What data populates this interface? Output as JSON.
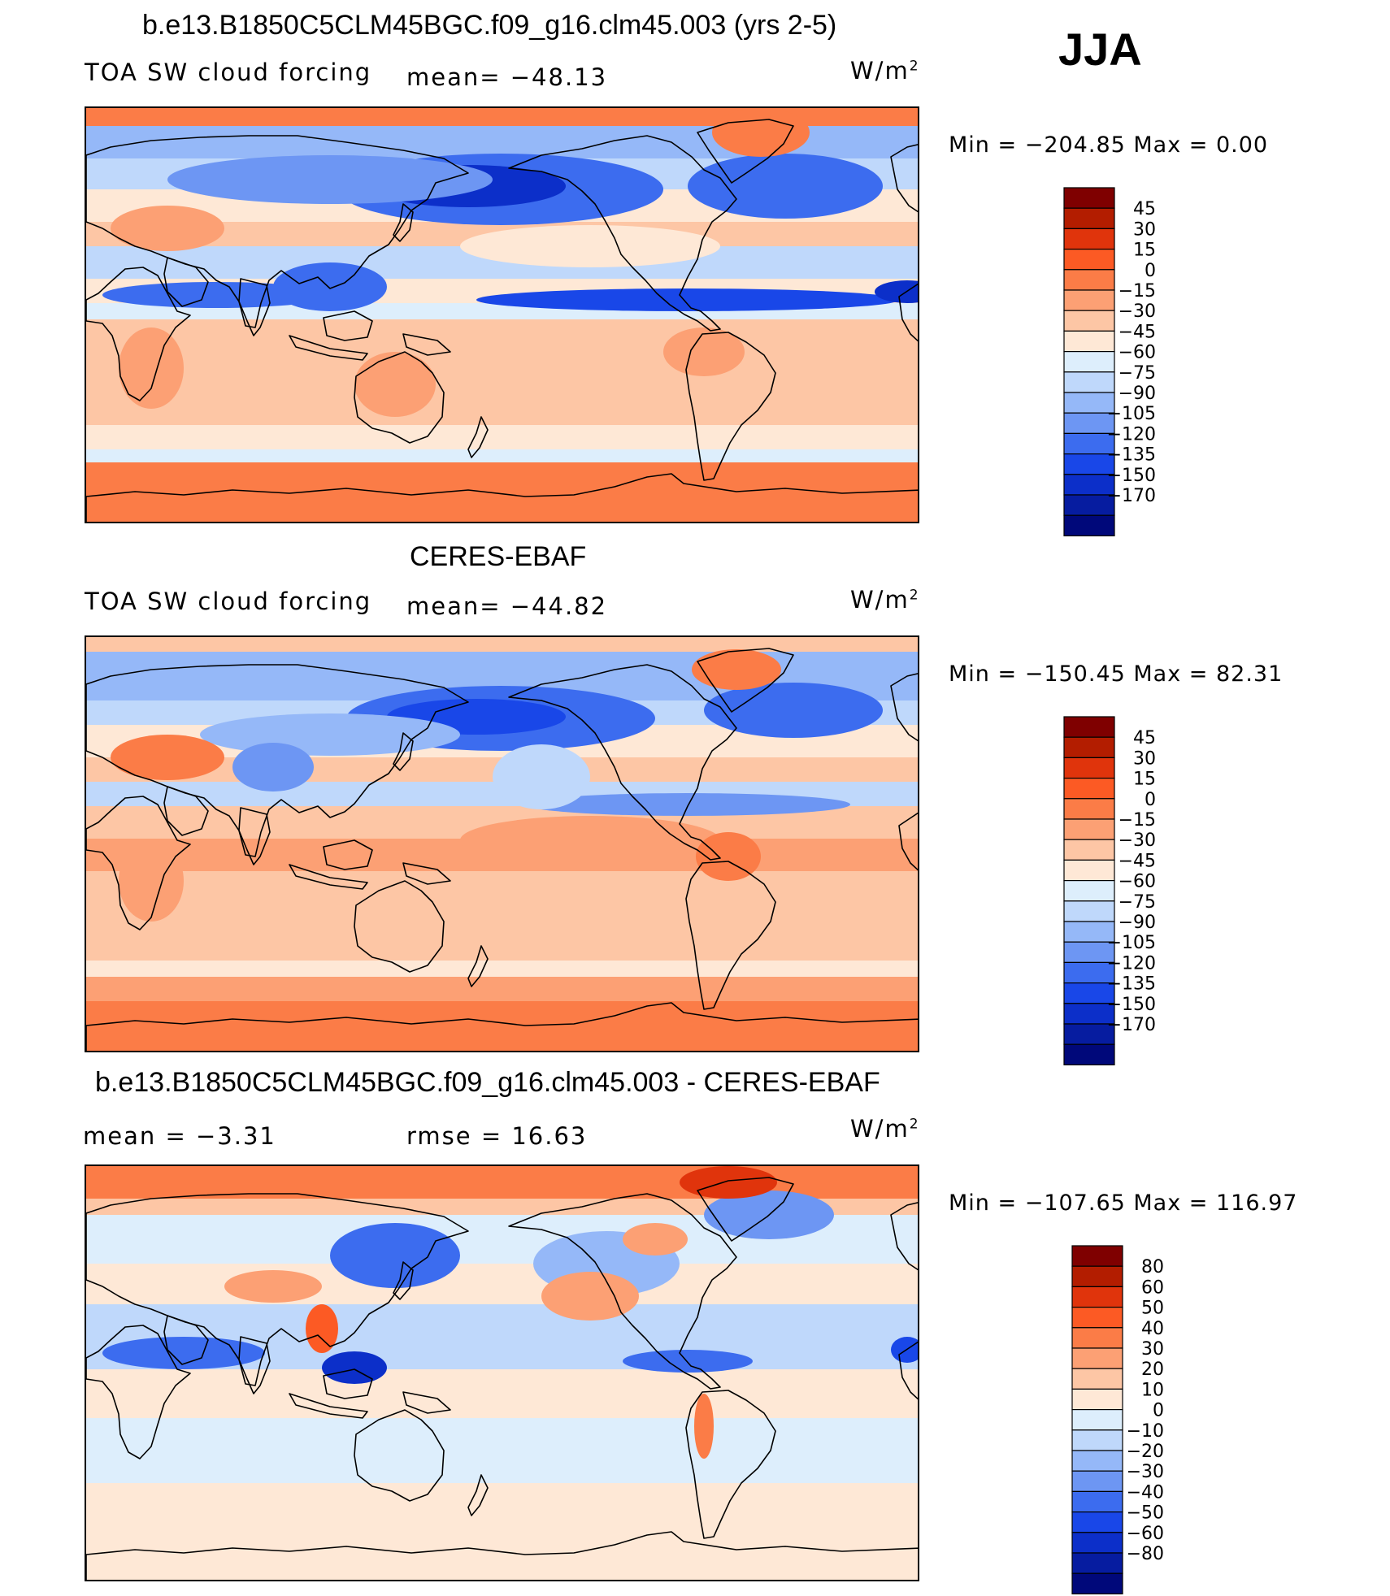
{
  "figure": {
    "season": "JJA"
  },
  "colors": {
    "red_scale": [
      "#7f0000",
      "#b31d00",
      "#e0340c",
      "#fc5a24",
      "#fb7c47",
      "#fca074",
      "#fdc6a5",
      "#fee8d6"
    ],
    "blue_scale": [
      "#ddeefc",
      "#bfd8fb",
      "#95b8f8",
      "#6d96f3",
      "#3c6cef",
      "#1947e8",
      "#0c2fc9",
      "#061ca0",
      "#00087a"
    ]
  },
  "panels": [
    {
      "title": "b.e13.B1850C5CLM45BGC.f09_g16.clm45.003 (yrs 2-5)",
      "left_label": "TOA SW cloud forcing",
      "stat_label": "mean= −48.13",
      "units": "W/m",
      "units_exp": "2",
      "minmax_text": "Min  =  −204.85  Max  =      0.00"
    },
    {
      "title": "CERES-EBAF",
      "left_label": "TOA SW cloud forcing",
      "stat_label": "mean= −44.82",
      "units": "W/m",
      "units_exp": "2",
      "minmax_text": "Min  =  −150.45  Max  =    82.31"
    },
    {
      "title": "b.e13.B1850C5CLM45BGC.f09_g16.clm45.003 - CERES-EBAF",
      "left_label": "mean  =    −3.31",
      "stat_label": "rmse  =    16.63",
      "units": "W/m",
      "units_exp": "2",
      "minmax_text": "Min  =  −107.65  Max  =  116.97"
    }
  ],
  "chart_data": [
    {
      "type": "heatmap",
      "title": "b.e13.B1850C5CLM45BGC.f09_g16.clm45.003 (yrs 2-5)",
      "variable": "TOA SW cloud forcing",
      "units": "W/m2",
      "mean": -48.13,
      "min": -204.85,
      "max": 0.0,
      "contour_levels": [
        -170,
        -150,
        -135,
        -120,
        -105,
        -90,
        -75,
        -60,
        -45,
        -30,
        -15,
        0,
        15,
        30,
        45
      ],
      "colorbar_labels": [
        "45",
        "30",
        "15",
        "0",
        "−15",
        "−30",
        "−45",
        "−60",
        "−75",
        "−90",
        "−105",
        "−120",
        "−135",
        "−150",
        "−170"
      ]
    },
    {
      "type": "heatmap",
      "title": "CERES-EBAF",
      "variable": "TOA SW cloud forcing",
      "units": "W/m2",
      "mean": -44.82,
      "min": -150.45,
      "max": 82.31,
      "contour_levels": [
        -170,
        -150,
        -135,
        -120,
        -105,
        -90,
        -75,
        -60,
        -45,
        -30,
        -15,
        0,
        15,
        30,
        45
      ],
      "colorbar_labels": [
        "45",
        "30",
        "15",
        "0",
        "−15",
        "−30",
        "−45",
        "−60",
        "−75",
        "−90",
        "−105",
        "−120",
        "−135",
        "−150",
        "−170"
      ]
    },
    {
      "type": "heatmap",
      "title": "b.e13.B1850C5CLM45BGC.f09_g16.clm45.003 - CERES-EBAF",
      "variable": "difference",
      "units": "W/m2",
      "mean": -3.31,
      "rmse": 16.63,
      "min": -107.65,
      "max": 116.97,
      "contour_levels": [
        -80,
        -60,
        -50,
        -40,
        -30,
        -20,
        -10,
        0,
        10,
        20,
        30,
        40,
        50,
        60,
        80
      ],
      "colorbar_labels": [
        "80",
        "60",
        "50",
        "40",
        "30",
        "20",
        "10",
        "0",
        "−10",
        "−20",
        "−30",
        "−40",
        "−50",
        "−60",
        "−80"
      ]
    }
  ]
}
